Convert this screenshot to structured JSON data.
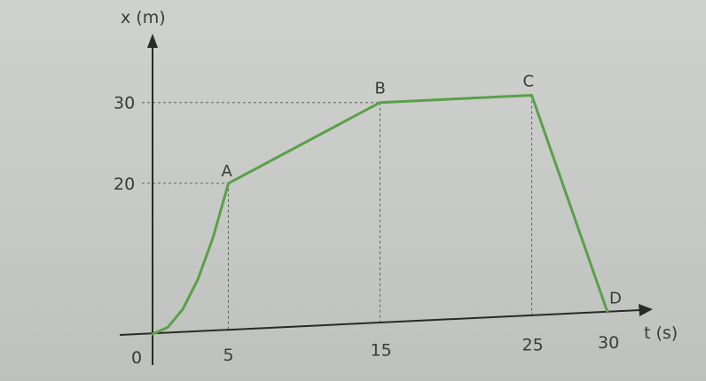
{
  "chart_data": {
    "type": "line",
    "xlabel": "t (s)",
    "ylabel": "x (m)",
    "origin_label": "0",
    "x_ticks": [
      "5",
      "15",
      "25",
      "30"
    ],
    "y_ticks": [
      "30",
      "20"
    ],
    "xlim": [
      0,
      33
    ],
    "ylim": [
      0,
      38
    ],
    "series": [
      {
        "points": [
          {
            "t": 0,
            "x": 0
          },
          {
            "t": 1,
            "x": 0.8
          },
          {
            "t": 2,
            "x": 3.2
          },
          {
            "t": 3,
            "x": 7.2
          },
          {
            "t": 4,
            "x": 12.8
          },
          {
            "t": 5,
            "x": 20
          },
          {
            "t": 15,
            "x": 30
          },
          {
            "t": 25,
            "x": 30
          },
          {
            "t": 30,
            "x": 0
          }
        ],
        "color": "#5aa04a"
      }
    ],
    "point_labels": [
      {
        "label": "A",
        "t": 5,
        "x": 20
      },
      {
        "label": "B",
        "t": 15,
        "x": 30
      },
      {
        "label": "C",
        "t": 25,
        "x": 30
      },
      {
        "label": "D",
        "t": 30,
        "x": 0
      }
    ]
  }
}
